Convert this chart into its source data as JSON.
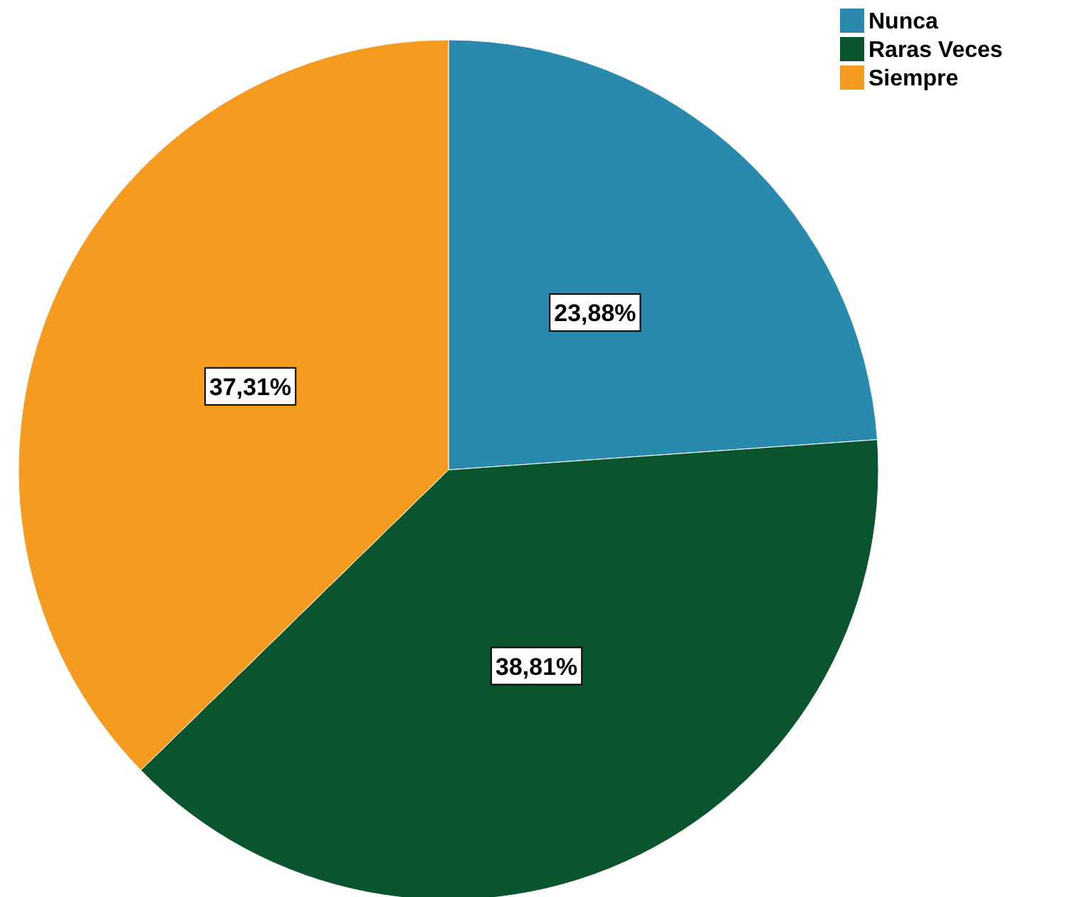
{
  "chart_data": {
    "type": "pie",
    "categories": [
      "Nunca",
      "Raras Veces",
      "Siempre"
    ],
    "values": [
      23.88,
      38.81,
      37.31
    ],
    "colors": [
      "#2a8aad",
      "#0b552e",
      "#f59b1f"
    ],
    "value_labels": [
      "23,88%",
      "38,81%",
      "37,31%"
    ],
    "legend": "top right"
  }
}
